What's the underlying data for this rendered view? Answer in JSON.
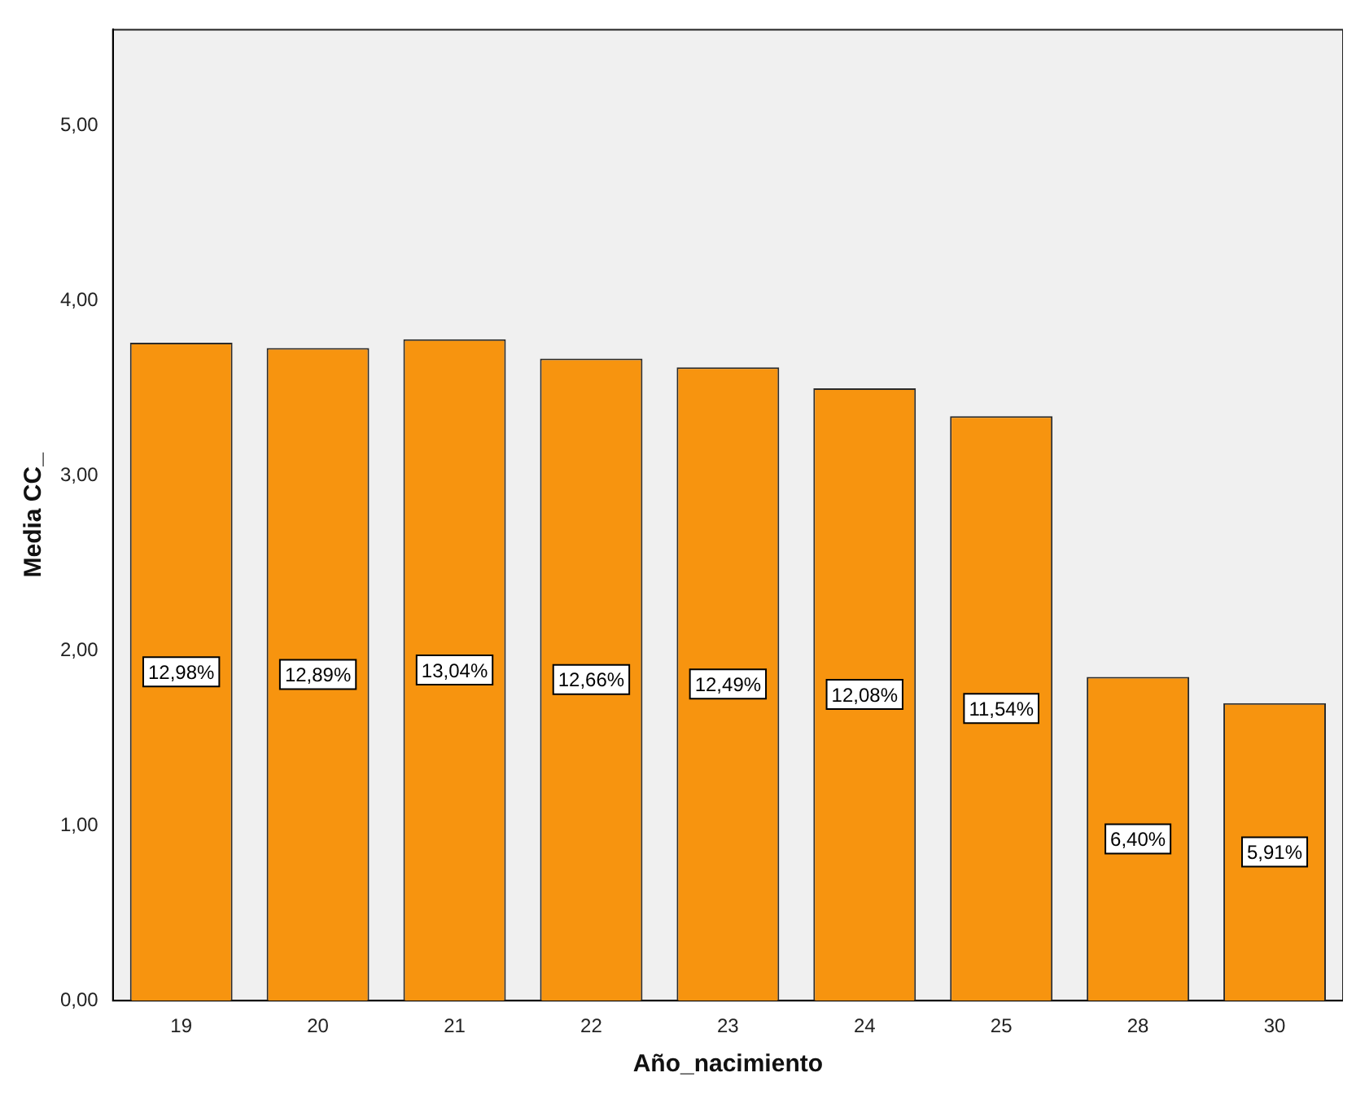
{
  "chart_data": {
    "type": "bar",
    "xlabel": "Año_nacimiento",
    "ylabel": "Media CC_",
    "categories": [
      "19",
      "20",
      "21",
      "22",
      "23",
      "24",
      "25",
      "28",
      "30"
    ],
    "values": [
      3.76,
      3.73,
      3.78,
      3.67,
      3.62,
      3.5,
      3.34,
      1.85,
      1.7
    ],
    "annotations": [
      "12,98%",
      "12,89%",
      "13,04%",
      "12,66%",
      "12,49%",
      "12,08%",
      "11,54%",
      "6,40%",
      "5,91%"
    ],
    "color": "#f7940f",
    "ylim": [
      0,
      5.55
    ],
    "yticks": [
      {
        "value": 0,
        "label": "0,00"
      },
      {
        "value": 1,
        "label": "1,00"
      },
      {
        "value": 2,
        "label": "2,00"
      },
      {
        "value": 3,
        "label": "3,00"
      },
      {
        "value": 4,
        "label": "4,00"
      },
      {
        "value": 5,
        "label": "5,00"
      }
    ],
    "grid": false,
    "legend": false
  }
}
